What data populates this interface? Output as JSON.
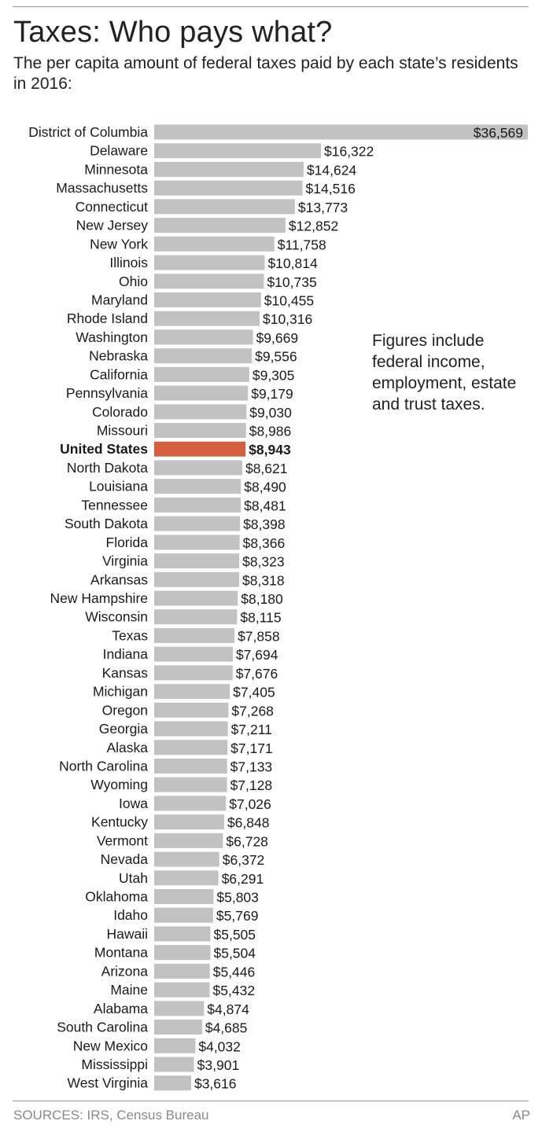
{
  "header": {
    "title": "Taxes: Who pays what?",
    "subtitle": "The per capita amount of federal taxes paid by each state’s residents in 2016:"
  },
  "note": "Figures include federal income, employment, estate and trust taxes.",
  "footer": {
    "source": "SOURCES: IRS, Census Bureau",
    "credit": "AP"
  },
  "colors": {
    "bar": "#c2c2c2",
    "highlight": "#d4603f"
  },
  "chart_data": {
    "type": "bar",
    "orientation": "horizontal",
    "highlight_category": "United States",
    "xlim": [
      0,
      36569
    ],
    "grid": false,
    "categories": [
      "District of Columbia",
      "Delaware",
      "Minnesota",
      "Massachusetts",
      "Connecticut",
      "New Jersey",
      "New York",
      "Illinois",
      "Ohio",
      "Maryland",
      "Rhode Island",
      "Washington",
      "Nebraska",
      "California",
      "Pennsylvania",
      "Colorado",
      "Missouri",
      "United States",
      "North Dakota",
      "Louisiana",
      "Tennessee",
      "South Dakota",
      "Florida",
      "Virginia",
      "Arkansas",
      "New Hampshire",
      "Wisconsin",
      "Texas",
      "Indiana",
      "Kansas",
      "Michigan",
      "Oregon",
      "Georgia",
      "Alaska",
      "North Carolina",
      "Wyoming",
      "Iowa",
      "Kentucky",
      "Vermont",
      "Nevada",
      "Utah",
      "Oklahoma",
      "Idaho",
      "Hawaii",
      "Montana",
      "Arizona",
      "Maine",
      "Alabama",
      "South Carolina",
      "New Mexico",
      "Mississippi",
      "West Virginia"
    ],
    "values": [
      36569,
      16322,
      14624,
      14516,
      13773,
      12852,
      11758,
      10814,
      10735,
      10455,
      10316,
      9669,
      9556,
      9305,
      9179,
      9030,
      8986,
      8943,
      8621,
      8490,
      8481,
      8398,
      8366,
      8323,
      8318,
      8180,
      8115,
      7858,
      7694,
      7676,
      7405,
      7268,
      7211,
      7171,
      7133,
      7128,
      7026,
      6848,
      6728,
      6372,
      6291,
      5803,
      5769,
      5505,
      5504,
      5446,
      5432,
      4874,
      4685,
      4032,
      3901,
      3616
    ],
    "value_labels": [
      "$36,569",
      "$16,322",
      "$14,624",
      "$14,516",
      "$13,773",
      "$12,852",
      "$11,758",
      "$10,814",
      "$10,735",
      "$10,455",
      "$10,316",
      "$9,669",
      "$9,556",
      "$9,305",
      "$9,179",
      "$9,030",
      "$8,986",
      "$8,943",
      "$8,621",
      "$8,490",
      "$8,481",
      "$8,398",
      "$8,366",
      "$8,323",
      "$8,318",
      "$8,180",
      "$8,115",
      "$7,858",
      "$7,694",
      "$7,676",
      "$7,405",
      "$7,268",
      "$7,211",
      "$7,171",
      "$7,133",
      "$7,128",
      "$7,026",
      "$6,848",
      "$6,728",
      "$6,372",
      "$6,291",
      "$5,803",
      "$5,769",
      "$5,505",
      "$5,504",
      "$5,446",
      "$5,432",
      "$4,874",
      "$4,685",
      "$4,032",
      "$3,901",
      "$3,616"
    ]
  }
}
